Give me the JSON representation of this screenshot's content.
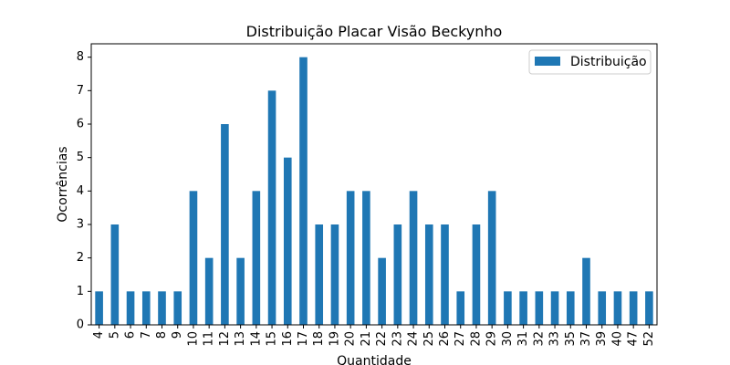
{
  "chart_data": {
    "type": "bar",
    "title": "Distribuição Placar Visão Beckynho",
    "xlabel": "Quantidade",
    "ylabel": "Ocorrências",
    "legend_label": "Distribuição",
    "legend_position": "top-right",
    "grid": false,
    "bar_color": "#1f77b4",
    "ylim": [
      0,
      8.4
    ],
    "yticks": [
      0,
      1,
      2,
      3,
      4,
      5,
      6,
      7,
      8
    ],
    "categories": [
      "4",
      "5",
      "6",
      "7",
      "8",
      "9",
      "10",
      "11",
      "12",
      "13",
      "14",
      "15",
      "16",
      "17",
      "18",
      "19",
      "20",
      "21",
      "22",
      "23",
      "24",
      "25",
      "26",
      "27",
      "28",
      "29",
      "30",
      "31",
      "32",
      "33",
      "35",
      "37",
      "39",
      "40",
      "47",
      "52"
    ],
    "values": [
      1,
      3,
      1,
      1,
      1,
      1,
      4,
      2,
      6,
      2,
      4,
      7,
      5,
      8,
      3,
      3,
      4,
      4,
      2,
      3,
      4,
      3,
      3,
      1,
      3,
      4,
      1,
      1,
      1,
      1,
      1,
      2,
      1,
      1,
      1,
      1
    ]
  }
}
